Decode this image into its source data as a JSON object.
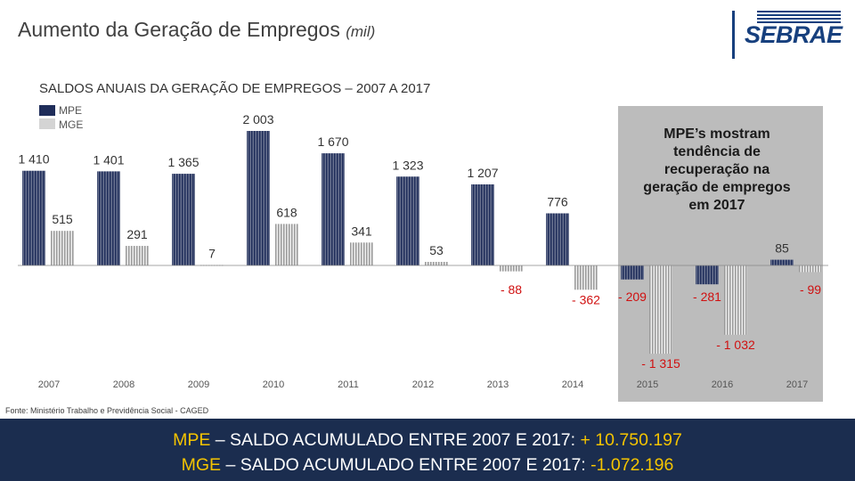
{
  "header": {
    "title": "Aumento da Geração de Empregos",
    "unit": "(mil)",
    "logo": "SEBRAE"
  },
  "source": "Fonte: Ministério Trabalho e Previdência Social - CAGED",
  "banner": {
    "line1_prefix": "MPE",
    "line1_text": " – SALDO ACUMULADO ENTRE 2007 E 2017: ",
    "line1_value": "+ 10.750.197",
    "line2_prefix": "MGE",
    "line2_text": " – SALDO ACUMULADO ENTRE 2007 E 2017: ",
    "line2_value": "-1.072.196"
  },
  "colors": {
    "mpe": "#1f2d5a",
    "mge": "#c8c8c8",
    "highlight_box": "#b0b0b0",
    "negative_label": "#d01010",
    "banner": "#1b2d4f"
  },
  "chart_data": {
    "type": "bar",
    "title": "SALDOS ANUAIS DA GERAÇÃO DE EMPREGOS – 2007 A 2017",
    "categories": [
      "2007",
      "2008",
      "2009",
      "2010",
      "2011",
      "2012",
      "2013",
      "2014",
      "2015",
      "2016",
      "2017"
    ],
    "series": [
      {
        "name": "MPE",
        "values": [
          1410,
          1401,
          1365,
          2003,
          1670,
          1323,
          1207,
          776,
          -209,
          -281,
          85
        ],
        "labels": [
          "1 410",
          "1 401",
          "1 365",
          "2 003",
          "1 670",
          "1 323",
          "1 207",
          "776",
          "- 209",
          "- 281",
          "85"
        ]
      },
      {
        "name": "MGE",
        "values": [
          515,
          291,
          7,
          618,
          341,
          53,
          -88,
          -362,
          -1315,
          -1032,
          -99
        ],
        "labels": [
          "515",
          "291",
          "7",
          "618",
          "341",
          "53",
          "- 88",
          "- 362",
          "- 1 315",
          "- 1 032",
          "- 99"
        ]
      }
    ],
    "ylim": [
      -1315,
      2003
    ],
    "legend": [
      "MPE",
      "MGE"
    ],
    "annotation": "MPE’s mostram tendência de recuperação na geração de empregos em 2017"
  }
}
